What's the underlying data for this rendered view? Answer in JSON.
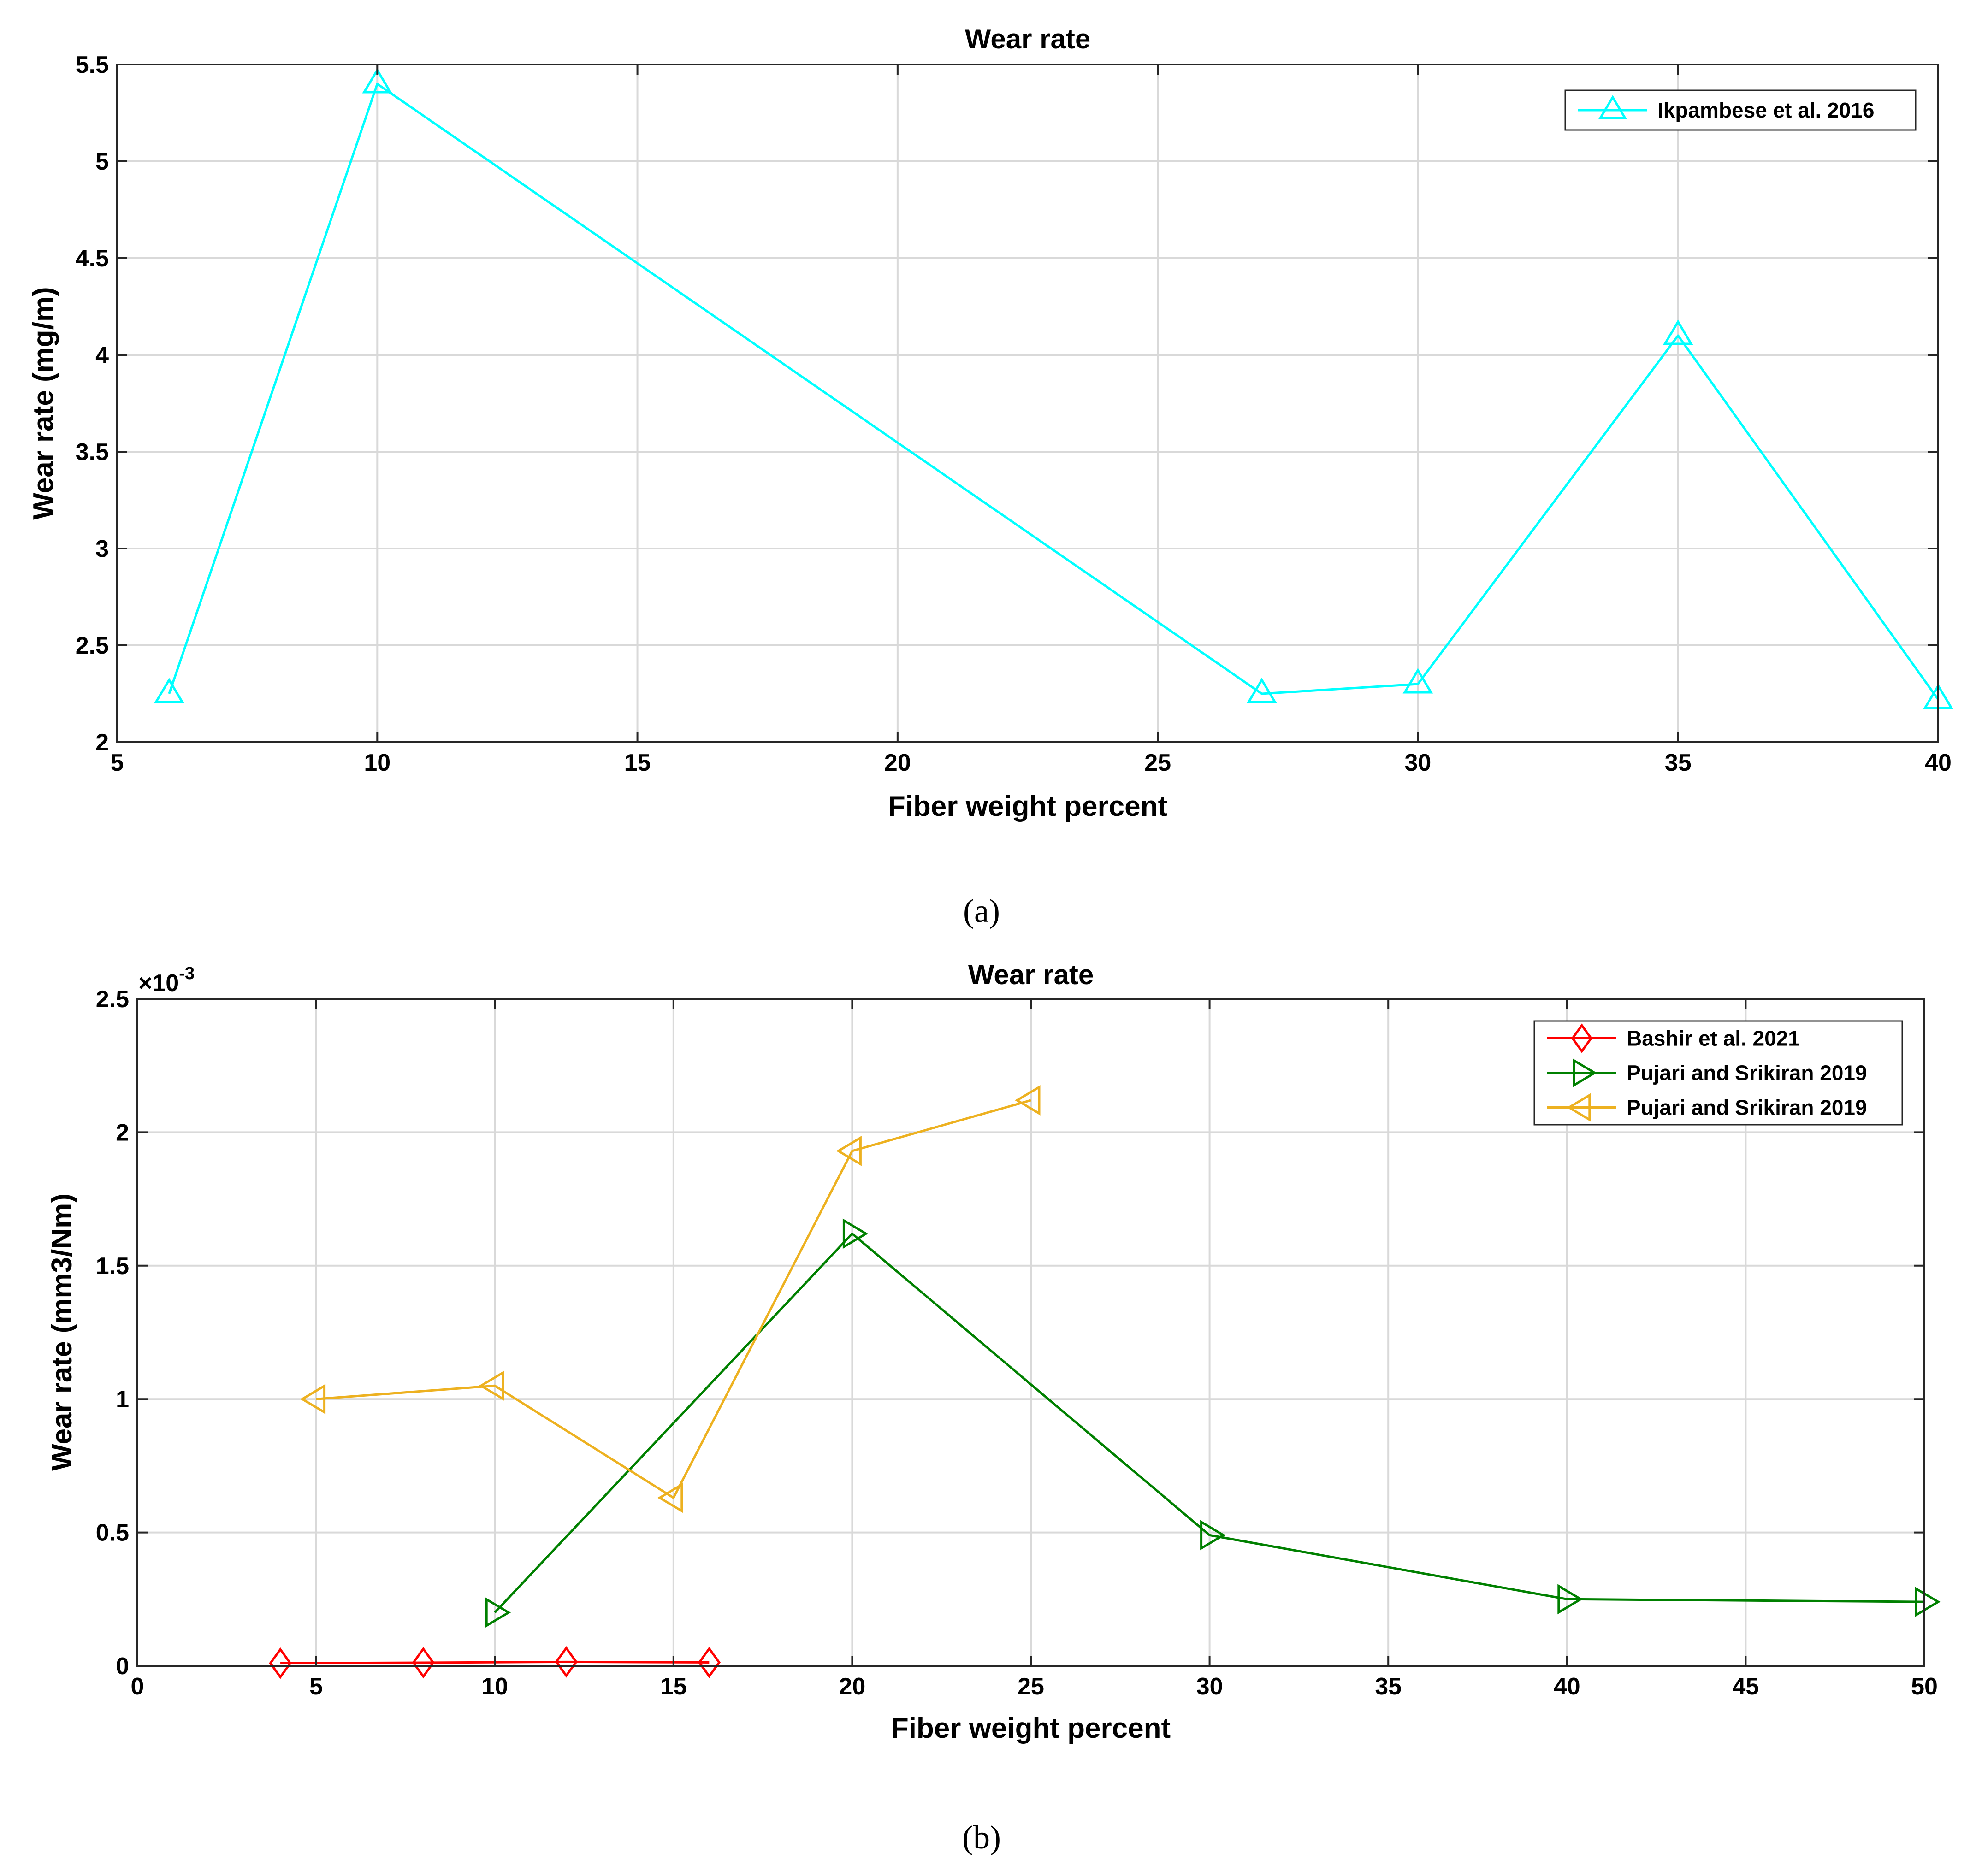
{
  "chart_data": [
    {
      "type": "line",
      "panel_label": "(a)",
      "title": "Wear rate",
      "xlabel": "Fiber weight percent",
      "ylabel": "Wear rate (mg/m)",
      "xlim": [
        5,
        40
      ],
      "ylim": [
        2,
        5.5
      ],
      "xticks": [
        "5",
        "10",
        "15",
        "20",
        "25",
        "30",
        "35",
        "40"
      ],
      "yticks": [
        "2",
        "2.5",
        "3",
        "3.5",
        "4",
        "4.5",
        "5",
        "5.5"
      ],
      "grid": true,
      "legend_position": "top-right",
      "series": [
        {
          "name": "Ikpambese et al. 2016",
          "color": "#00ffff",
          "marker": "triangle-up",
          "x": [
            6,
            10,
            27,
            30,
            35,
            40
          ],
          "y": [
            2.25,
            5.4,
            2.25,
            2.3,
            4.1,
            2.22
          ]
        }
      ]
    },
    {
      "type": "line",
      "panel_label": "(b)",
      "title": "Wear rate",
      "xlabel": "Fiber weight percent",
      "ylabel": "Wear rate (mm3/Nm)",
      "exponent_label": "×10",
      "exponent_power": "-3",
      "xlim": [
        0,
        50
      ],
      "ylim": [
        0,
        2.5
      ],
      "xticks": [
        "0",
        "5",
        "10",
        "15",
        "20",
        "25",
        "30",
        "35",
        "40",
        "45",
        "50"
      ],
      "yticks": [
        "0",
        "0.5",
        "1",
        "1.5",
        "2",
        "2.5"
      ],
      "grid": true,
      "legend_position": "top-right",
      "series": [
        {
          "name": "Bashir et al. 2021",
          "color": "#ff0000",
          "marker": "diamond",
          "x": [
            4,
            8,
            12,
            16
          ],
          "y": [
            0.01,
            0.012,
            0.015,
            0.013
          ]
        },
        {
          "name": "Pujari and Srikiran 2019",
          "color": "#008000",
          "marker": "triangle-right",
          "x": [
            10,
            20,
            30,
            40,
            50
          ],
          "y": [
            0.2,
            1.62,
            0.49,
            0.25,
            0.24
          ]
        },
        {
          "name": "Pujari and Srikiran 2019",
          "color": "#edb120",
          "marker": "triangle-left",
          "x": [
            5,
            10,
            15,
            20,
            25
          ],
          "y": [
            1.0,
            1.05,
            0.63,
            1.93,
            2.12
          ]
        }
      ]
    }
  ]
}
